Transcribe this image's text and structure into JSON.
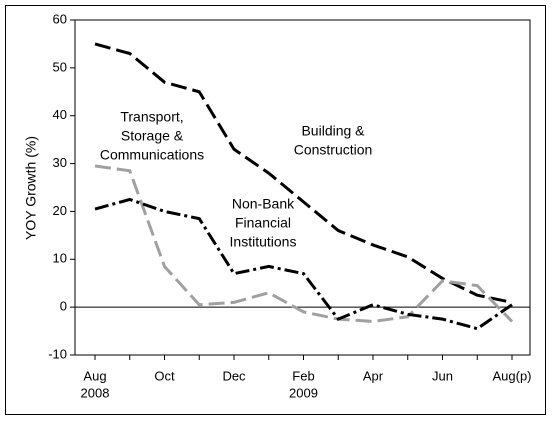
{
  "chart_data": {
    "type": "line",
    "ylabel": "YOY Growth (%)",
    "categories": [
      "Aug",
      null,
      "Oct",
      null,
      "Dec",
      null,
      "Feb",
      null,
      "Apr",
      null,
      "Jun",
      null,
      "Aug(p)"
    ],
    "year_labels": [
      "2008",
      null,
      null,
      null,
      null,
      null,
      "2009",
      null,
      null,
      null,
      null,
      null,
      null
    ],
    "ylim": [
      -10,
      60
    ],
    "yticks": [
      -10,
      0,
      10,
      20,
      30,
      40,
      50,
      60
    ],
    "zero_line": true,
    "series": [
      {
        "name_lines": [
          "Building &",
          "Construction"
        ],
        "color": "#000000",
        "style": "dashed",
        "values": [
          55,
          53,
          47,
          45,
          33,
          28,
          22,
          16,
          13,
          10.5,
          6,
          2.5,
          1
        ]
      },
      {
        "name_lines": [
          "Transport,",
          "Storage &",
          "Communications"
        ],
        "color": "#a0a0a0",
        "style": "dashed",
        "values": [
          29.5,
          28.5,
          8.5,
          0.5,
          1,
          3,
          -1,
          -2.5,
          -3,
          -2,
          5.5,
          4.5,
          -3
        ]
      },
      {
        "name_lines": [
          "Non-Bank",
          "Financial",
          "Institutions"
        ],
        "color": "#000000",
        "style": "dash-dot",
        "values": [
          20.5,
          22.5,
          20,
          18.5,
          7,
          8.5,
          7,
          -2.5,
          0.5,
          -1.5,
          -2.5,
          -4.5,
          0.5
        ]
      }
    ]
  }
}
